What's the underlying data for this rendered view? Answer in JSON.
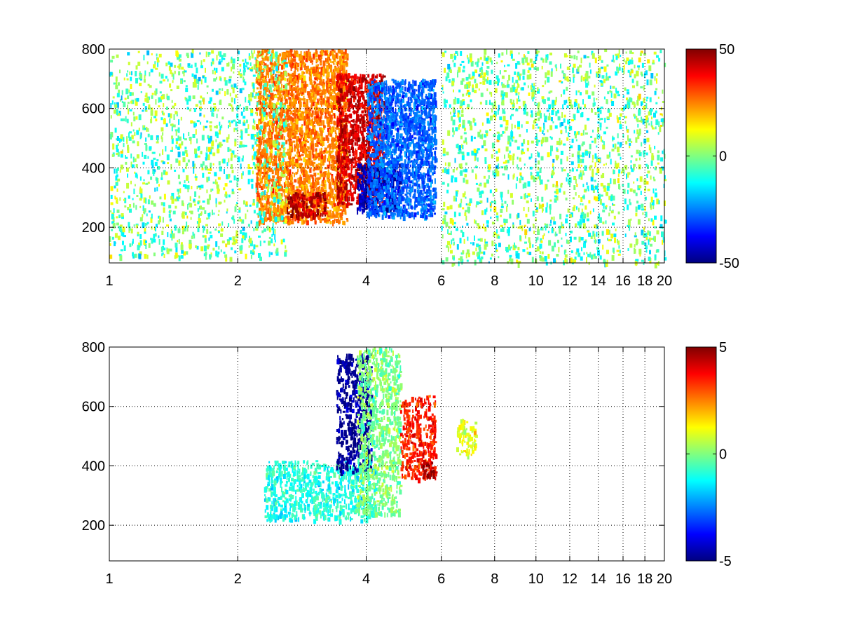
{
  "chart_data": [
    {
      "type": "heatmap",
      "title": "",
      "xlabel": "",
      "ylabel": "",
      "xscale": "log",
      "xlim": [
        1,
        20
      ],
      "ylim": [
        80,
        800
      ],
      "grid": true,
      "xticks": [
        1,
        2,
        4,
        6,
        8,
        10,
        12,
        14,
        16,
        18,
        20
      ],
      "xtick_labels": [
        "1",
        "2",
        "4",
        "6",
        "8",
        "10",
        "12",
        "14",
        "16",
        "18",
        "20"
      ],
      "yticks": [
        200,
        400,
        600,
        800
      ],
      "ytick_labels": [
        "200",
        "400",
        "600",
        "800"
      ],
      "colormap": "jet",
      "clim": [
        -50,
        50
      ],
      "colorbar_ticks": [
        -50,
        0,
        50
      ],
      "colorbar_tick_labels": [
        "-50",
        "0",
        "50"
      ],
      "features": [
        {
          "x_range": [
            2.2,
            3.6
          ],
          "y_range": [
            220,
            800
          ],
          "value": 25
        },
        {
          "x_range": [
            2.6,
            3.2
          ],
          "y_range": [
            240,
            320
          ],
          "value": 45
        },
        {
          "x_range": [
            3.4,
            4.4
          ],
          "y_range": [
            280,
            720
          ],
          "value": 42
        },
        {
          "x_range": [
            3.8,
            4.8
          ],
          "y_range": [
            260,
            420
          ],
          "value": -45
        },
        {
          "x_range": [
            4.0,
            5.8
          ],
          "y_range": [
            240,
            700
          ],
          "value": -28
        },
        {
          "x_range": [
            1.0,
            2.6
          ],
          "y_range": [
            100,
            800
          ],
          "value": -2
        },
        {
          "x_range": [
            6.0,
            20.0
          ],
          "y_range": [
            80,
            800
          ],
          "value": 2
        }
      ]
    },
    {
      "type": "heatmap",
      "title": "",
      "xlabel": "",
      "ylabel": "",
      "xscale": "log",
      "xlim": [
        1,
        20
      ],
      "ylim": [
        80,
        800
      ],
      "grid": true,
      "xticks": [
        1,
        2,
        4,
        6,
        8,
        10,
        12,
        14,
        16,
        18,
        20
      ],
      "xtick_labels": [
        "1",
        "2",
        "4",
        "6",
        "8",
        "10",
        "12",
        "14",
        "16",
        "18",
        "20"
      ],
      "yticks": [
        200,
        400,
        600,
        800
      ],
      "ytick_labels": [
        "200",
        "400",
        "600",
        "800"
      ],
      "colormap": "jet",
      "clim": [
        -5,
        5
      ],
      "colorbar_ticks": [
        -5,
        0,
        5
      ],
      "colorbar_tick_labels": [
        "-5",
        "0",
        "5"
      ],
      "features": [
        {
          "x_range": [
            2.3,
            4.2
          ],
          "y_range": [
            220,
            420
          ],
          "value": -1
        },
        {
          "x_range": [
            3.4,
            4.1
          ],
          "y_range": [
            380,
            780
          ],
          "value": -4.8
        },
        {
          "x_range": [
            3.8,
            4.8
          ],
          "y_range": [
            240,
            800
          ],
          "value": 0
        },
        {
          "x_range": [
            4.8,
            5.8
          ],
          "y_range": [
            360,
            640
          ],
          "value": 3.5
        },
        {
          "x_range": [
            5.4,
            5.8
          ],
          "y_range": [
            360,
            420
          ],
          "value": 4.5
        },
        {
          "x_range": [
            6.5,
            7.2
          ],
          "y_range": [
            440,
            560
          ],
          "value": 1
        }
      ]
    }
  ]
}
